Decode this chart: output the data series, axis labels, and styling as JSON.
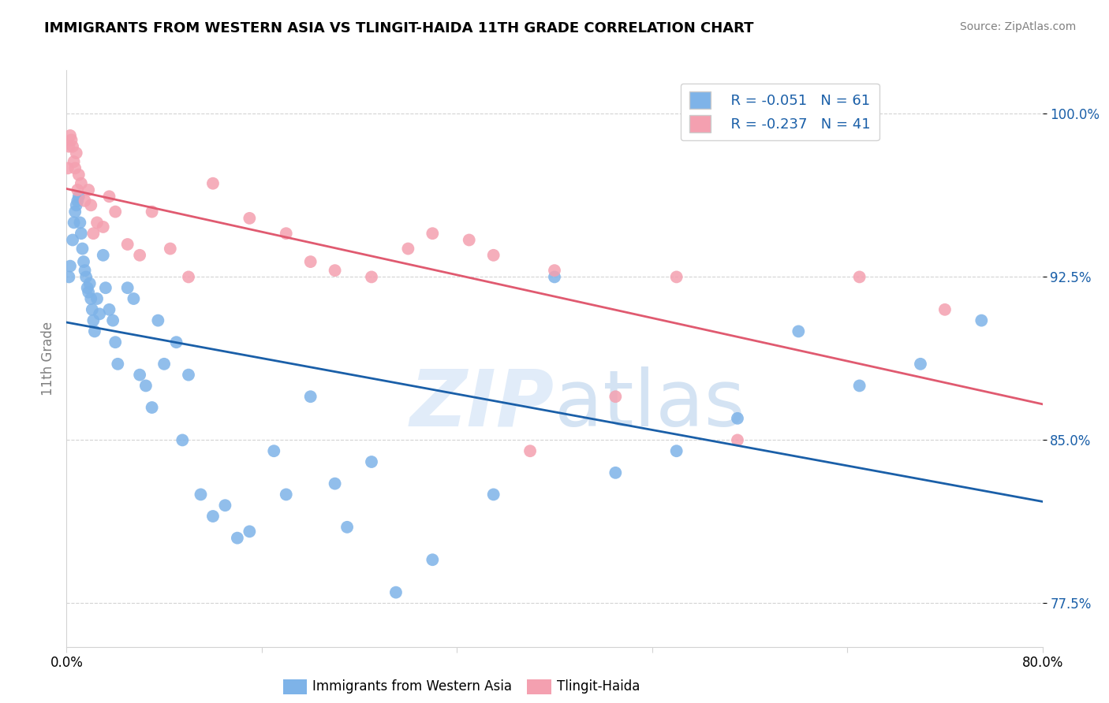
{
  "title": "IMMIGRANTS FROM WESTERN ASIA VS TLINGIT-HAIDA 11TH GRADE CORRELATION CHART",
  "source": "Source: ZipAtlas.com",
  "ylabel": "11th Grade",
  "xlim": [
    0.0,
    80.0
  ],
  "ylim": [
    75.5,
    102.0
  ],
  "yticks": [
    77.5,
    85.0,
    92.5,
    100.0
  ],
  "ytick_labels": [
    "77.5%",
    "85.0%",
    "92.5%",
    "100.0%"
  ],
  "xtick_positions": [
    0.0,
    16.0,
    32.0,
    48.0,
    64.0,
    80.0
  ],
  "xtick_labels": [
    "0.0%",
    "",
    "",
    "",
    "",
    "80.0%"
  ],
  "legend_r_blue": "R = -0.051",
  "legend_n_blue": "N = 61",
  "legend_r_pink": "R = -0.237",
  "legend_n_pink": "N = 41",
  "blue_color": "#7eb3e8",
  "pink_color": "#f4a0b0",
  "blue_line_color": "#1a5fa8",
  "pink_line_color": "#e05a70",
  "blue_x": [
    0.2,
    0.3,
    0.5,
    0.6,
    0.7,
    0.8,
    0.9,
    1.0,
    1.1,
    1.2,
    1.3,
    1.4,
    1.5,
    1.6,
    1.7,
    1.8,
    1.9,
    2.0,
    2.1,
    2.2,
    2.3,
    2.5,
    2.7,
    3.0,
    3.2,
    3.5,
    3.8,
    4.0,
    4.2,
    5.0,
    5.5,
    6.0,
    6.5,
    7.0,
    7.5,
    8.0,
    9.0,
    9.5,
    10.0,
    11.0,
    12.0,
    13.0,
    14.0,
    15.0,
    17.0,
    18.0,
    20.0,
    22.0,
    23.0,
    25.0,
    27.0,
    30.0,
    35.0,
    40.0,
    45.0,
    50.0,
    55.0,
    60.0,
    65.0,
    70.0,
    75.0
  ],
  "blue_y": [
    92.5,
    93.0,
    94.2,
    95.0,
    95.5,
    95.8,
    96.0,
    96.2,
    95.0,
    94.5,
    93.8,
    93.2,
    92.8,
    92.5,
    92.0,
    91.8,
    92.2,
    91.5,
    91.0,
    90.5,
    90.0,
    91.5,
    90.8,
    93.5,
    92.0,
    91.0,
    90.5,
    89.5,
    88.5,
    92.0,
    91.5,
    88.0,
    87.5,
    86.5,
    90.5,
    88.5,
    89.5,
    85.0,
    88.0,
    82.5,
    81.5,
    82.0,
    80.5,
    80.8,
    84.5,
    82.5,
    87.0,
    83.0,
    81.0,
    84.0,
    78.0,
    79.5,
    82.5,
    92.5,
    83.5,
    84.5,
    86.0,
    90.0,
    87.5,
    88.5,
    90.5
  ],
  "pink_x": [
    0.1,
    0.2,
    0.3,
    0.4,
    0.5,
    0.6,
    0.7,
    0.8,
    0.9,
    1.0,
    1.2,
    1.5,
    1.8,
    2.0,
    2.2,
    2.5,
    3.0,
    3.5,
    4.0,
    5.0,
    6.0,
    7.0,
    8.5,
    10.0,
    12.0,
    15.0,
    18.0,
    20.0,
    22.0,
    25.0,
    28.0,
    30.0,
    33.0,
    35.0,
    38.0,
    40.0,
    45.0,
    50.0,
    55.0,
    65.0,
    72.0
  ],
  "pink_y": [
    97.5,
    98.5,
    99.0,
    98.8,
    98.5,
    97.8,
    97.5,
    98.2,
    96.5,
    97.2,
    96.8,
    96.0,
    96.5,
    95.8,
    94.5,
    95.0,
    94.8,
    96.2,
    95.5,
    94.0,
    93.5,
    95.5,
    93.8,
    92.5,
    96.8,
    95.2,
    94.5,
    93.2,
    92.8,
    92.5,
    93.8,
    94.5,
    94.2,
    93.5,
    84.5,
    92.8,
    87.0,
    92.5,
    85.0,
    92.5,
    91.0
  ],
  "legend_label_blue": "Immigrants from Western Asia",
  "legend_label_pink": "Tlingit-Haida"
}
